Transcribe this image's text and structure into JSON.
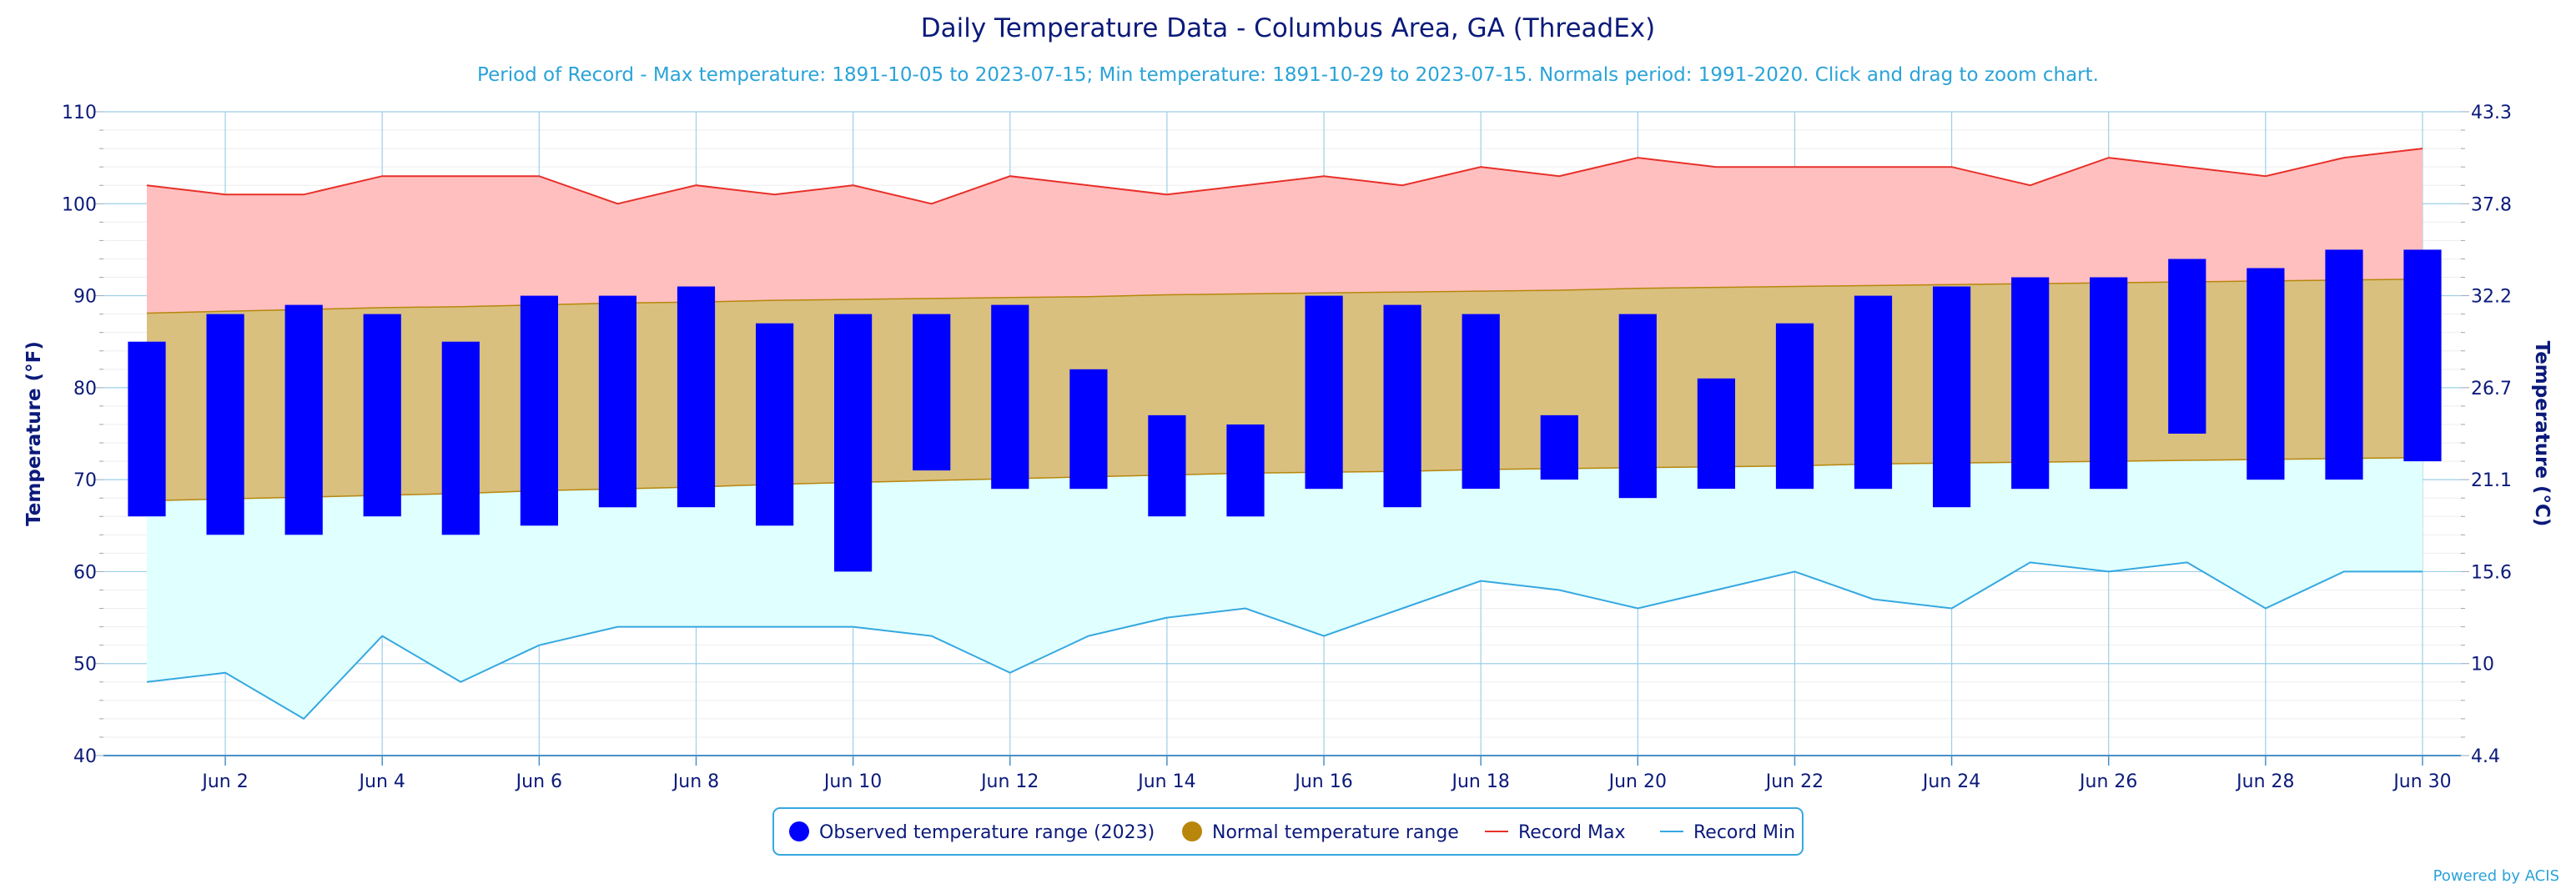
{
  "chart_data": {
    "type": "bar",
    "title": "Daily Temperature Data - Columbus Area, GA (ThreadEx)",
    "subtitle": "Period of Record - Max temperature: 1891-10-05 to 2023-07-15; Min temperature: 1891-10-29 to 2023-07-15. Normals period: 1991-2020. Click and drag to zoom chart.",
    "ylabel_left": "Temperature (°F)",
    "ylabel_right": "Temperature (°C)",
    "ylim": [
      40,
      110
    ],
    "yticks_left": [
      "40",
      "50",
      "60",
      "70",
      "80",
      "90",
      "100",
      "110"
    ],
    "yticks_right": [
      "4.4",
      "10",
      "15.6",
      "21.1",
      "26.7",
      "32.2",
      "37.8",
      "43.3"
    ],
    "x_day_range": [
      1,
      30
    ],
    "xtick_days": [
      2,
      4,
      6,
      8,
      10,
      12,
      14,
      16,
      18,
      20,
      22,
      24,
      26,
      28,
      30
    ],
    "xtick_labels": [
      "Jun 2",
      "Jun 4",
      "Jun 6",
      "Jun 8",
      "Jun 10",
      "Jun 12",
      "Jun 14",
      "Jun 16",
      "Jun 18",
      "Jun 20",
      "Jun 22",
      "Jun 24",
      "Jun 26",
      "Jun 28",
      "Jun 30"
    ],
    "days": [
      1,
      2,
      3,
      4,
      5,
      6,
      7,
      8,
      9,
      10,
      11,
      12,
      13,
      14,
      15,
      16,
      17,
      18,
      19,
      20,
      21,
      22,
      23,
      24,
      25,
      26,
      27,
      28,
      29,
      30
    ],
    "series": [
      {
        "name": "Observed temperature range (2023)",
        "kind": "range-bar",
        "color": "#0000ff",
        "low": [
          66,
          64,
          64,
          66,
          64,
          65,
          67,
          67,
          65,
          60,
          71,
          69,
          69,
          66,
          66,
          69,
          67,
          69,
          70,
          68,
          69,
          69,
          69,
          67,
          69,
          69,
          75,
          70,
          70,
          72
        ],
        "high": [
          85,
          88,
          89,
          88,
          85,
          90,
          90,
          91,
          87,
          88,
          88,
          89,
          82,
          77,
          76,
          90,
          89,
          88,
          77,
          88,
          81,
          87,
          90,
          91,
          92,
          92,
          94,
          93,
          95,
          95
        ]
      },
      {
        "name": "Normal temperature range",
        "kind": "area-range",
        "color": "#b8860b",
        "fill": "#d9c07f",
        "low": [
          67.7,
          67.9,
          68.1,
          68.3,
          68.5,
          68.8,
          69.0,
          69.2,
          69.5,
          69.7,
          69.9,
          70.1,
          70.3,
          70.5,
          70.7,
          70.8,
          70.9,
          71.1,
          71.2,
          71.3,
          71.4,
          71.5,
          71.7,
          71.8,
          71.9,
          72.0,
          72.1,
          72.2,
          72.3,
          72.4
        ],
        "high": [
          88.1,
          88.3,
          88.5,
          88.7,
          88.8,
          89.0,
          89.2,
          89.3,
          89.5,
          89.6,
          89.7,
          89.8,
          89.9,
          90.1,
          90.2,
          90.3,
          90.4,
          90.5,
          90.6,
          90.8,
          90.9,
          91.0,
          91.1,
          91.2,
          91.3,
          91.4,
          91.5,
          91.6,
          91.7,
          91.8
        ]
      },
      {
        "name": "Record Max",
        "kind": "line",
        "color": "#e8302a",
        "fill": "#ffbfbf",
        "values": [
          102,
          101,
          101,
          103,
          103,
          103,
          100,
          102,
          101,
          102,
          100,
          103,
          102,
          101,
          102,
          103,
          102,
          104,
          103,
          105,
          104,
          104,
          104,
          104,
          102,
          105,
          104,
          103,
          105,
          106
        ]
      },
      {
        "name": "Record Min",
        "kind": "line",
        "color": "#35a8e0",
        "fill": "#e0ffff",
        "values": [
          48,
          49,
          44,
          53,
          48,
          52,
          54,
          54,
          54,
          54,
          53,
          49,
          53,
          55,
          56,
          53,
          56,
          59,
          58,
          56,
          58,
          60,
          57,
          56,
          61,
          60,
          61,
          56,
          60,
          60
        ]
      }
    ],
    "legend": [
      "Observed temperature range (2023)",
      "Normal temperature range",
      "Record Max",
      "Record Min"
    ],
    "legend_position": "bottom-center",
    "grid": true,
    "credits": "Powered by ACIS"
  }
}
